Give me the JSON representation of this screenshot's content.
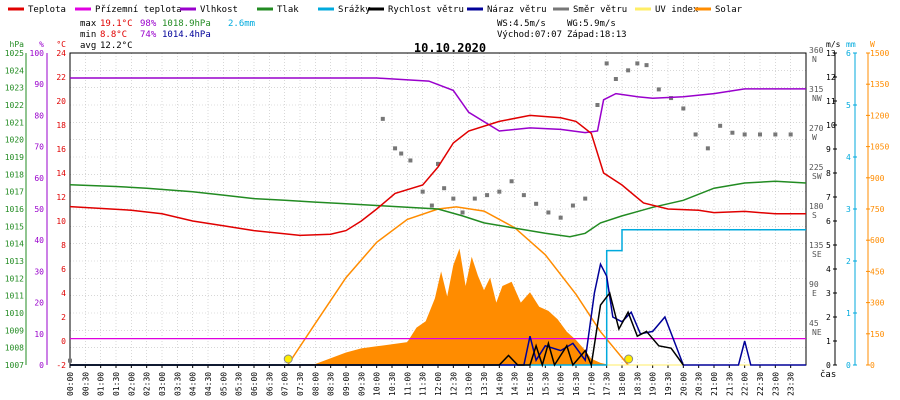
{
  "chart_data": {
    "type": "line",
    "title": "10.10.2020",
    "xlabel": "čas",
    "legend": {
      "placement": "top",
      "items": [
        {
          "label": "Teplota",
          "color": "#e00000"
        },
        {
          "label": "Přízemní teplota",
          "color": "#e000e0"
        },
        {
          "label": "Vlhkost",
          "color": "#9900cc"
        },
        {
          "label": "Tlak",
          "color": "#228b22"
        },
        {
          "label": "Srážky",
          "color": "#00aadd"
        },
        {
          "label": "Rychlost větru",
          "color": "#000000"
        },
        {
          "label": "Náraz větru",
          "color": "#000099"
        },
        {
          "label": "Směr větru",
          "color": "#777777"
        },
        {
          "label": "UV index",
          "color": "#ffee66"
        },
        {
          "label": "Solar",
          "color": "#ff8c00"
        }
      ]
    },
    "stats": {
      "max_label": "max",
      "max_temp": "19.1°C",
      "max_hum": "98%",
      "max_press": "1018.9hPa",
      "rain_total": "2.6mm",
      "min_label": "min",
      "min_temp": "8.8°C",
      "min_hum": "74%",
      "min_press": "1014.4hPa",
      "avg_label": "avg",
      "avg_temp": "12.2°C",
      "ws": "WS:4.5m/s",
      "wg": "WG:5.9m/s",
      "sunrise": "Východ:07:07",
      "sunset": "Západ:18:13"
    },
    "x_ticks": [
      "00:00",
      "00:30",
      "01:00",
      "01:30",
      "02:00",
      "02:30",
      "03:00",
      "03:30",
      "04:00",
      "04:30",
      "05:00",
      "05:30",
      "06:00",
      "06:30",
      "07:00",
      "07:30",
      "08:00",
      "08:30",
      "09:00",
      "09:30",
      "10:00",
      "10:30",
      "11:00",
      "11:30",
      "12:00",
      "12:30",
      "13:00",
      "13:30",
      "14:00",
      "14:30",
      "15:00",
      "15:30",
      "16:00",
      "16:30",
      "17:00",
      "17:30",
      "18:00",
      "18:30",
      "19:00",
      "19:30",
      "20:00",
      "20:30",
      "21:00",
      "21:30",
      "22:00",
      "22:30",
      "23:00",
      "23:30"
    ],
    "axes": {
      "pressure": {
        "unit": "hPa",
        "range": [
          1007,
          1025
        ],
        "ticks": [
          "1007",
          "1008",
          "1009",
          "1010",
          "1011",
          "1012",
          "1013",
          "1014",
          "1015",
          "1016",
          "1017",
          "1018",
          "1019",
          "1020",
          "1021",
          "1022",
          "1023",
          "1024",
          "1025"
        ],
        "color": "#228b22"
      },
      "humidity": {
        "unit": "%",
        "range": [
          0,
          100
        ],
        "ticks": [
          "0",
          "10",
          "20",
          "30",
          "40",
          "50",
          "60",
          "70",
          "80",
          "90",
          "100"
        ],
        "color": "#9900cc"
      },
      "temperature": {
        "unit": "°C",
        "range": [
          -2,
          24
        ],
        "ticks": [
          "-2",
          "0",
          "2",
          "4",
          "6",
          "8",
          "10",
          "12",
          "14",
          "16",
          "18",
          "20",
          "22",
          "24"
        ],
        "color": "#e00000"
      },
      "wind_speed": {
        "unit": "m/s",
        "range": [
          0,
          13
        ],
        "ticks": [
          "0",
          "1",
          "2",
          "3",
          "4",
          "5",
          "6",
          "7",
          "8",
          "9",
          "10",
          "11",
          "12",
          "13"
        ],
        "color": "#000000"
      },
      "wind_dir": {
        "range": [
          0,
          360
        ],
        "ticks": [
          {
            "value": 360,
            "deg": "360",
            "dir": "N"
          },
          {
            "value": 315,
            "deg": "315",
            "dir": "NW"
          },
          {
            "value": 270,
            "deg": "270",
            "dir": "W"
          },
          {
            "value": 225,
            "deg": "225",
            "dir": "SW"
          },
          {
            "value": 180,
            "deg": "180",
            "dir": "S"
          },
          {
            "value": 135,
            "deg": "135",
            "dir": "SE"
          },
          {
            "value": 90,
            "deg": "90",
            "dir": "E"
          },
          {
            "value": 45,
            "deg": "45",
            "dir": "NE"
          }
        ],
        "color": "#555555"
      },
      "rain": {
        "unit": "mm",
        "range": [
          0,
          6
        ],
        "ticks": [
          "0",
          "1",
          "2",
          "3",
          "4",
          "5",
          "6"
        ],
        "color": "#00aadd"
      },
      "solar": {
        "unit": "W",
        "range": [
          0,
          1500
        ],
        "ticks": [
          "0",
          "150",
          "300",
          "450",
          "600",
          "750",
          "900",
          "1050",
          "1200",
          "1350",
          "1500"
        ],
        "color": "#ff8c00"
      }
    },
    "series": {
      "temperature": [
        [
          0,
          11.2
        ],
        [
          2,
          10.9
        ],
        [
          3,
          10.6
        ],
        [
          4,
          10
        ],
        [
          5,
          9.6
        ],
        [
          6,
          9.2
        ],
        [
          7.5,
          8.8
        ],
        [
          8.5,
          8.9
        ],
        [
          9,
          9.2
        ],
        [
          9.5,
          10
        ],
        [
          10,
          11
        ],
        [
          10.6,
          12.3
        ],
        [
          11.5,
          13
        ],
        [
          12,
          14.5
        ],
        [
          12.5,
          16.5
        ],
        [
          13,
          17.5
        ],
        [
          14,
          18.3
        ],
        [
          15,
          18.8
        ],
        [
          16,
          18.6
        ],
        [
          16.5,
          18.3
        ],
        [
          17,
          17.3
        ],
        [
          17.4,
          14
        ],
        [
          18,
          13
        ],
        [
          18.7,
          11.5
        ],
        [
          19.5,
          11
        ],
        [
          20.5,
          10.9
        ],
        [
          21,
          10.7
        ],
        [
          22,
          10.8
        ],
        [
          23,
          10.6
        ],
        [
          24,
          10.6
        ]
      ],
      "humidity": [
        [
          0,
          92
        ],
        [
          10,
          92
        ],
        [
          11.7,
          91
        ],
        [
          12.5,
          88
        ],
        [
          13,
          81
        ],
        [
          14,
          75
        ],
        [
          15,
          76
        ],
        [
          16,
          75.5
        ],
        [
          16.8,
          74.5
        ],
        [
          17.2,
          75
        ],
        [
          17.4,
          85
        ],
        [
          17.8,
          87
        ],
        [
          18.5,
          86
        ],
        [
          19,
          85.5
        ],
        [
          20,
          86
        ],
        [
          21,
          87
        ],
        [
          22,
          88.5
        ],
        [
          23,
          88.5
        ],
        [
          24,
          88.5
        ]
      ],
      "pressure": [
        [
          0,
          1017.4
        ],
        [
          1.5,
          1017.3
        ],
        [
          2.5,
          1017.2
        ],
        [
          4,
          1017
        ],
        [
          5,
          1016.8
        ],
        [
          6,
          1016.6
        ],
        [
          7,
          1016.5
        ],
        [
          8,
          1016.4
        ],
        [
          9,
          1016.3
        ],
        [
          10,
          1016.2
        ],
        [
          11,
          1016.1
        ],
        [
          12,
          1016
        ],
        [
          12.8,
          1015.6
        ],
        [
          13.5,
          1015.2
        ],
        [
          14.5,
          1014.9
        ],
        [
          15.5,
          1014.6
        ],
        [
          16.3,
          1014.4
        ],
        [
          16.8,
          1014.6
        ],
        [
          17.3,
          1015.2
        ],
        [
          18,
          1015.6
        ],
        [
          19,
          1016.1
        ],
        [
          20,
          1016.5
        ],
        [
          21,
          1017.2
        ],
        [
          22,
          1017.5
        ],
        [
          23,
          1017.6
        ],
        [
          24,
          1017.5
        ]
      ],
      "rain": [
        [
          0,
          0
        ],
        [
          17.5,
          0
        ],
        [
          17.5,
          2.2
        ],
        [
          18,
          2.2
        ],
        [
          18,
          2.6
        ],
        [
          24,
          2.6
        ]
      ],
      "wind_speed": [
        [
          0,
          0
        ],
        [
          14,
          0
        ],
        [
          14.3,
          0.4
        ],
        [
          14.6,
          0
        ],
        [
          15,
          0
        ],
        [
          15.2,
          0.8
        ],
        [
          15.4,
          0
        ],
        [
          15.6,
          0.9
        ],
        [
          15.8,
          0
        ],
        [
          16.2,
          0.8
        ],
        [
          16.4,
          0
        ],
        [
          16.8,
          0.6
        ],
        [
          17,
          0
        ],
        [
          17.3,
          2.5
        ],
        [
          17.6,
          3
        ],
        [
          17.9,
          1.5
        ],
        [
          18.2,
          2.2
        ],
        [
          18.5,
          1.2
        ],
        [
          18.8,
          1.4
        ],
        [
          19.2,
          0.8
        ],
        [
          19.6,
          0.7
        ],
        [
          20,
          0
        ]
      ],
      "wind_gust": [
        [
          0,
          0
        ],
        [
          13,
          0
        ],
        [
          14.8,
          0
        ],
        [
          15,
          1.2
        ],
        [
          15.2,
          0.2
        ],
        [
          15.5,
          0.8
        ],
        [
          16,
          0.6
        ],
        [
          16.4,
          0.9
        ],
        [
          16.8,
          0.2
        ],
        [
          17.1,
          3
        ],
        [
          17.3,
          4.2
        ],
        [
          17.5,
          3.7
        ],
        [
          17.7,
          2
        ],
        [
          18,
          1.8
        ],
        [
          18.3,
          2.2
        ],
        [
          18.6,
          1.3
        ],
        [
          19,
          1.4
        ],
        [
          19.4,
          2
        ],
        [
          19.7,
          1
        ],
        [
          20,
          0
        ],
        [
          21.8,
          0
        ],
        [
          22,
          1
        ],
        [
          22.2,
          0
        ],
        [
          24,
          0
        ]
      ],
      "solar": [
        [
          7,
          0
        ],
        [
          8,
          5
        ],
        [
          9,
          60
        ],
        [
          9.5,
          80
        ],
        [
          10,
          90
        ],
        [
          10.5,
          100
        ],
        [
          11,
          110
        ],
        [
          11.3,
          180
        ],
        [
          11.6,
          210
        ],
        [
          11.9,
          320
        ],
        [
          12.1,
          450
        ],
        [
          12.3,
          330
        ],
        [
          12.5,
          480
        ],
        [
          12.7,
          560
        ],
        [
          12.9,
          380
        ],
        [
          13.1,
          520
        ],
        [
          13.3,
          430
        ],
        [
          13.5,
          360
        ],
        [
          13.7,
          420
        ],
        [
          13.9,
          300
        ],
        [
          14.1,
          380
        ],
        [
          14.4,
          400
        ],
        [
          14.7,
          300
        ],
        [
          15,
          350
        ],
        [
          15.3,
          280
        ],
        [
          15.6,
          260
        ],
        [
          15.9,
          220
        ],
        [
          16.2,
          160
        ],
        [
          16.5,
          120
        ],
        [
          16.8,
          70
        ],
        [
          17,
          30
        ],
        [
          17.3,
          10
        ],
        [
          17.6,
          0
        ]
      ],
      "solar_theoretical": [
        [
          7.1,
          0
        ],
        [
          8,
          200
        ],
        [
          9,
          420
        ],
        [
          10,
          590
        ],
        [
          11,
          700
        ],
        [
          12,
          750
        ],
        [
          12.6,
          760
        ],
        [
          13.5,
          740
        ],
        [
          14.5,
          660
        ],
        [
          15.5,
          530
        ],
        [
          16.5,
          340
        ],
        [
          17.3,
          160
        ],
        [
          18.2,
          0
        ]
      ],
      "ground_temperature": [
        [
          0,
          0.2
        ],
        [
          24,
          0.2
        ]
      ],
      "wind_dir": [
        [
          0,
          5
        ],
        [
          10.2,
          284
        ],
        [
          10.6,
          250
        ],
        [
          10.8,
          244
        ],
        [
          11.1,
          236
        ],
        [
          11.5,
          200
        ],
        [
          11.8,
          184
        ],
        [
          12,
          232
        ],
        [
          12.2,
          204
        ],
        [
          12.5,
          192
        ],
        [
          12.8,
          176
        ],
        [
          13.2,
          192
        ],
        [
          13.6,
          196
        ],
        [
          14,
          200
        ],
        [
          14.4,
          212
        ],
        [
          14.8,
          196
        ],
        [
          15.2,
          186
        ],
        [
          15.6,
          176
        ],
        [
          16,
          170
        ],
        [
          16.4,
          184
        ],
        [
          16.8,
          192
        ],
        [
          17.2,
          300
        ],
        [
          17.5,
          348
        ],
        [
          17.8,
          330
        ],
        [
          18.2,
          340
        ],
        [
          18.5,
          348
        ],
        [
          18.8,
          346
        ],
        [
          19.2,
          318
        ],
        [
          19.6,
          308
        ],
        [
          20,
          296
        ],
        [
          20.4,
          266
        ],
        [
          20.8,
          250
        ],
        [
          21.2,
          276
        ],
        [
          21.6,
          268
        ],
        [
          22,
          266
        ],
        [
          22.5,
          266
        ],
        [
          23,
          266
        ],
        [
          23.5,
          266
        ]
      ],
      "uv": [
        [
          0,
          0
        ],
        [
          24,
          0
        ]
      ]
    }
  }
}
